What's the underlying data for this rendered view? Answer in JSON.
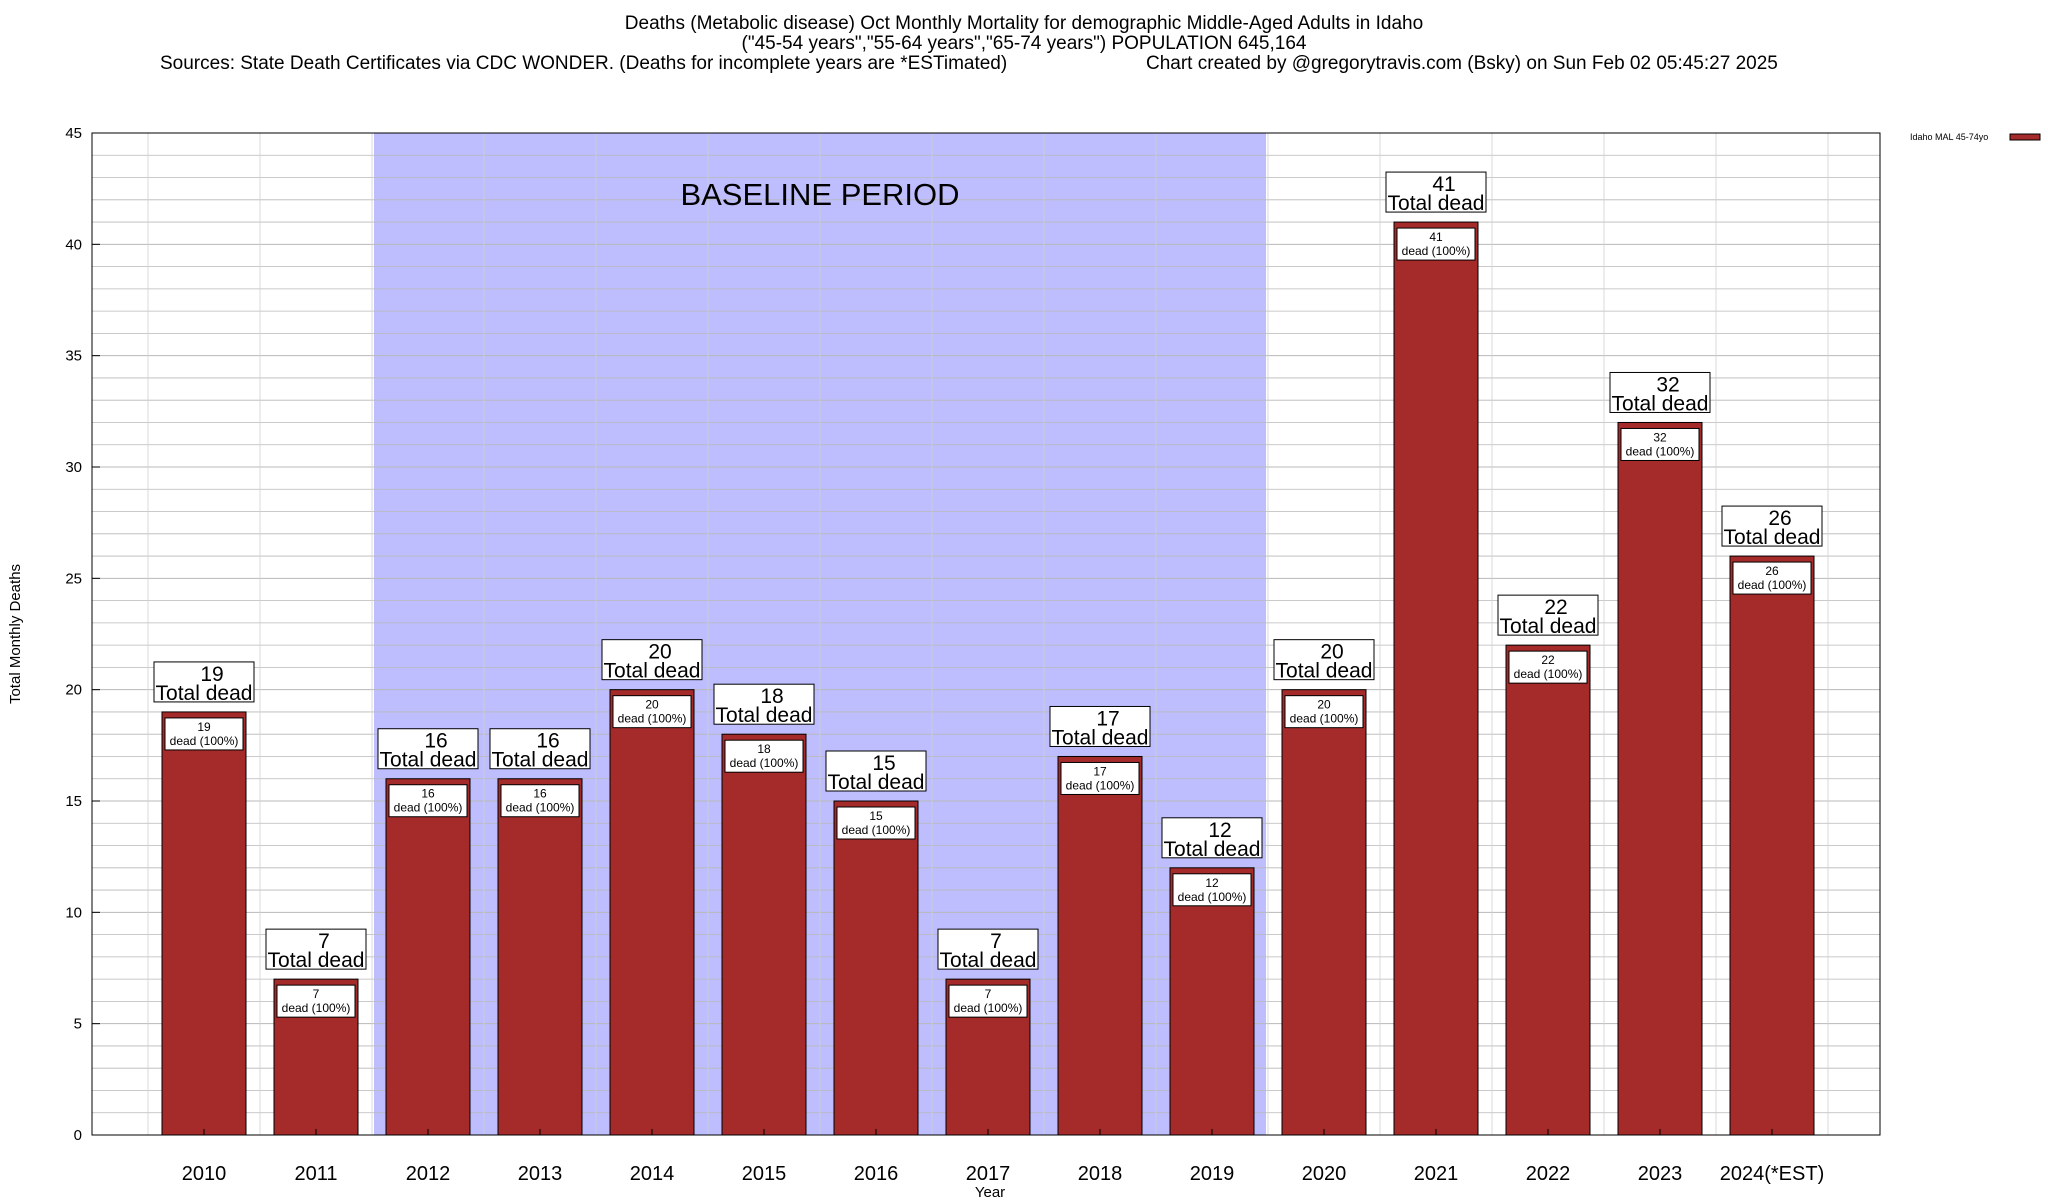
{
  "header": {
    "title_line1": "Deaths (Metabolic disease) Oct Monthly Mortality for demographic Middle-Aged Adults in Idaho",
    "title_line2": "(\"45-54 years\",\"55-64 years\",\"65-74 years\") POPULATION 645,164",
    "sources": "Sources: State Death Certificates via CDC WONDER. (Deaths for incomplete years are *ESTimated)",
    "credit": "Chart created by @gregorytravis.com (Bsky) on Sun Feb 02 05:45:27 2025"
  },
  "chart_data": {
    "type": "bar",
    "xlabel": "Year",
    "ylabel": "Total Monthly Deaths",
    "ylim": [
      0,
      45
    ],
    "yticks": [
      0,
      5,
      10,
      15,
      20,
      25,
      30,
      35,
      40,
      45
    ],
    "grid": true,
    "legend_placement": "top-right",
    "categories": [
      "2010",
      "2011",
      "2012",
      "2013",
      "2014",
      "2015",
      "2016",
      "2017",
      "2018",
      "2019",
      "2020",
      "2021",
      "2022",
      "2023",
      "2024(*EST)"
    ],
    "series": [
      {
        "name": "Idaho MAL 45-74yo",
        "values": [
          19,
          7,
          16,
          16,
          20,
          18,
          15,
          7,
          17,
          12,
          20,
          41,
          22,
          32,
          26
        ],
        "color": "#a52a2a"
      }
    ],
    "total_label": "Total dead",
    "inner_label": "dead (100%)",
    "baseline": {
      "label": "BASELINE PERIOD",
      "from": "2012",
      "to": "2019",
      "color": "#bebeff"
    }
  }
}
